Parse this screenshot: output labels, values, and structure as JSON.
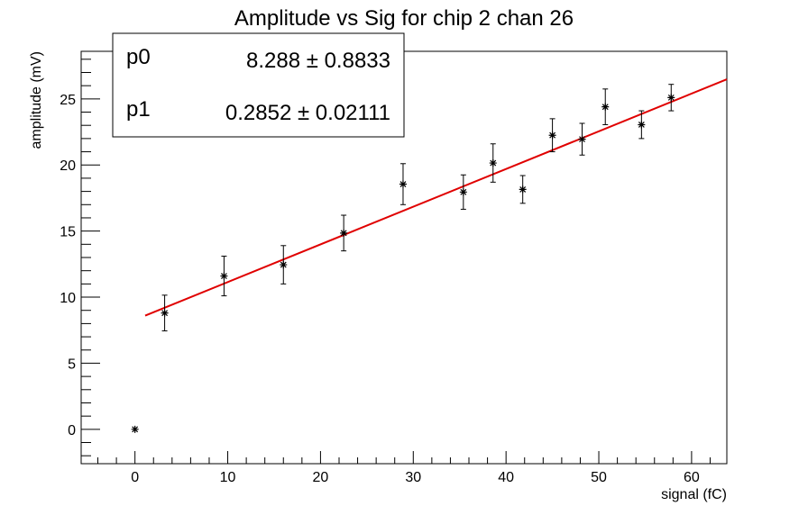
{
  "chart_data": {
    "type": "scatter",
    "title": "Amplitude vs Sig for chip 2 chan 26",
    "xlabel": "signal (fC)",
    "ylabel": "amplitude (mV)",
    "xlim": [
      -5.8,
      63.8
    ],
    "ylim": [
      -2.6,
      28.6
    ],
    "x_ticks": [
      0,
      10,
      20,
      30,
      40,
      50,
      60
    ],
    "y_ticks": [
      0,
      5,
      10,
      15,
      20,
      25
    ],
    "grid": false,
    "points": [
      {
        "x": 0.0,
        "y": 0.0,
        "err": 0
      },
      {
        "x": 3.2,
        "y": 8.8,
        "err": 1.35
      },
      {
        "x": 9.6,
        "y": 11.6,
        "err": 1.5
      },
      {
        "x": 16.0,
        "y": 12.45,
        "err": 1.45
      },
      {
        "x": 22.5,
        "y": 14.85,
        "err": 1.35
      },
      {
        "x": 28.9,
        "y": 18.55,
        "err": 1.55
      },
      {
        "x": 35.4,
        "y": 17.95,
        "err": 1.3
      },
      {
        "x": 38.6,
        "y": 20.15,
        "err": 1.45
      },
      {
        "x": 41.8,
        "y": 18.15,
        "err": 1.05
      },
      {
        "x": 45.0,
        "y": 22.25,
        "err": 1.25
      },
      {
        "x": 48.2,
        "y": 21.95,
        "err": 1.2
      },
      {
        "x": 50.7,
        "y": 24.4,
        "err": 1.35
      },
      {
        "x": 54.6,
        "y": 23.05,
        "err": 1.05
      },
      {
        "x": 57.8,
        "y": 25.1,
        "err": 1.0
      }
    ],
    "fit": {
      "p0": 8.288,
      "p1": 0.2852,
      "x_start": 1.1,
      "x_end": 63.8,
      "color": "#e00000"
    },
    "legend_position": "top-left",
    "stats": [
      {
        "name": "p0",
        "value": "8.288 ± 0.8833"
      },
      {
        "name": "p1",
        "value": "0.2852 ± 0.02111"
      }
    ]
  }
}
